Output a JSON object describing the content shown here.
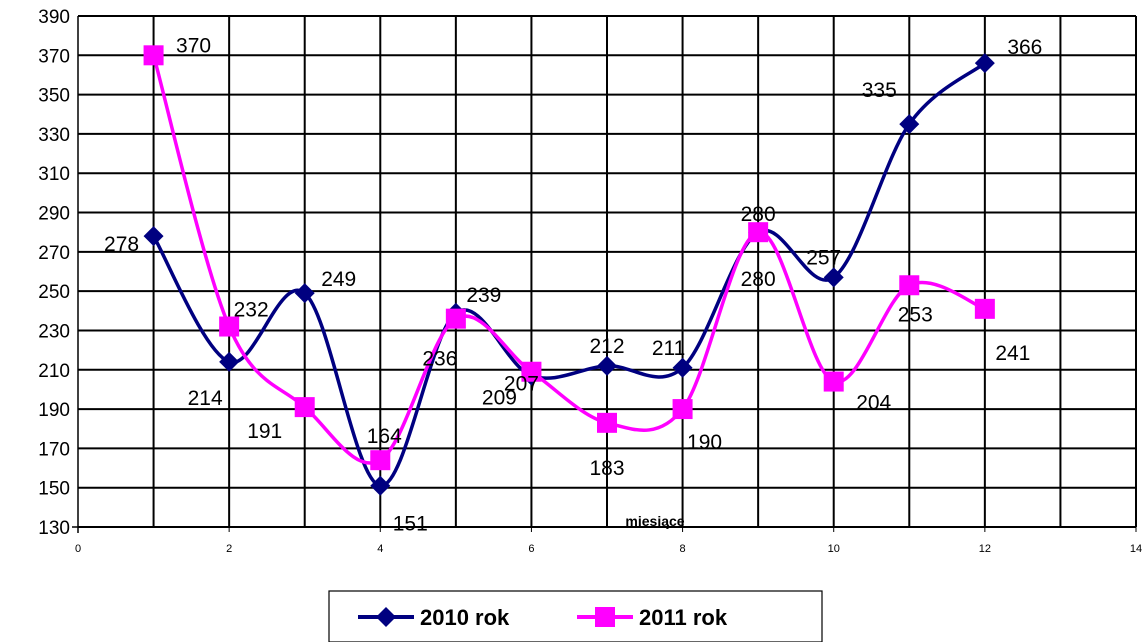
{
  "chart_data": {
    "type": "line",
    "title": "",
    "xlabel": "miesiące",
    "ylabel": "",
    "xlim": [
      0,
      14
    ],
    "ylim": [
      130,
      390
    ],
    "x_ticks": [
      "0",
      "2",
      "4",
      "6",
      "8",
      "10",
      "12",
      "14"
    ],
    "y_ticks": [
      "130",
      "150",
      "170",
      "190",
      "210",
      "230",
      "250",
      "270",
      "290",
      "310",
      "330",
      "350",
      "370",
      "390"
    ],
    "grid": true,
    "legend_position": "bottom",
    "series": [
      {
        "name": "2010 rok",
        "color": "#000080",
        "marker": "diamond",
        "x": [
          1,
          2,
          3,
          4,
          5,
          6,
          7,
          8,
          9,
          10,
          11,
          12
        ],
        "values": [
          278,
          214,
          249,
          151,
          239,
          207,
          212,
          211,
          280,
          257,
          335,
          366
        ],
        "labels": [
          "278",
          "214",
          "249",
          "151",
          "239",
          "207",
          "212",
          "211",
          "280",
          "257",
          "335",
          "366"
        ]
      },
      {
        "name": "2011 rok",
        "color": "#ff00ff",
        "marker": "square",
        "x": [
          1,
          2,
          3,
          4,
          5,
          6,
          7,
          8,
          9,
          10,
          11,
          12
        ],
        "values": [
          370,
          232,
          191,
          164,
          236,
          209,
          183,
          190,
          280,
          204,
          253,
          241
        ],
        "labels": [
          "370",
          "232",
          "191",
          "164",
          "236",
          "209",
          "183",
          "190",
          "280",
          "204",
          "253",
          "241"
        ]
      }
    ]
  }
}
